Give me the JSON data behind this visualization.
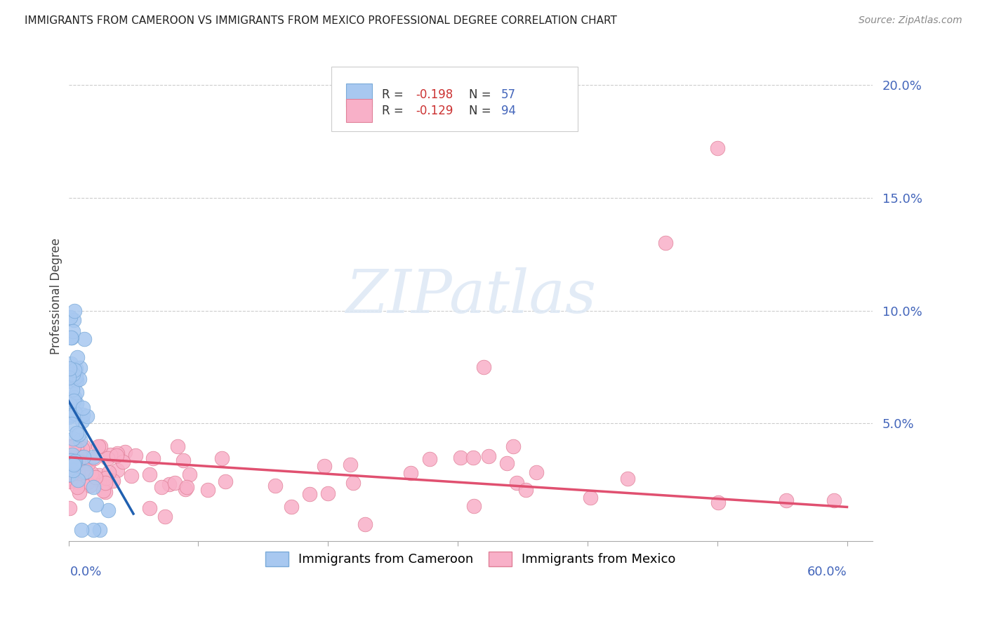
{
  "title": "IMMIGRANTS FROM CAMEROON VS IMMIGRANTS FROM MEXICO PROFESSIONAL DEGREE CORRELATION CHART",
  "source": "Source: ZipAtlas.com",
  "ylabel": "Professional Degree",
  "cameroon_color": "#a8c8f0",
  "cameroon_edge": "#7aaad8",
  "cameroon_line": "#2060b0",
  "mexico_color": "#f8b0c8",
  "mexico_edge": "#e08098",
  "mexico_line": "#e05070",
  "xlim": [
    0.0,
    0.62
  ],
  "ylim": [
    -0.002,
    0.215
  ],
  "background_color": "#ffffff",
  "grid_color": "#cccccc",
  "cam_R": -0.198,
  "cam_N": 57,
  "mex_R": -0.129,
  "mex_N": 94,
  "right_yticks": [
    0.05,
    0.1,
    0.15,
    0.2
  ],
  "right_yticklabels": [
    "5.0%",
    "10.0%",
    "15.0%",
    "20.0%"
  ]
}
